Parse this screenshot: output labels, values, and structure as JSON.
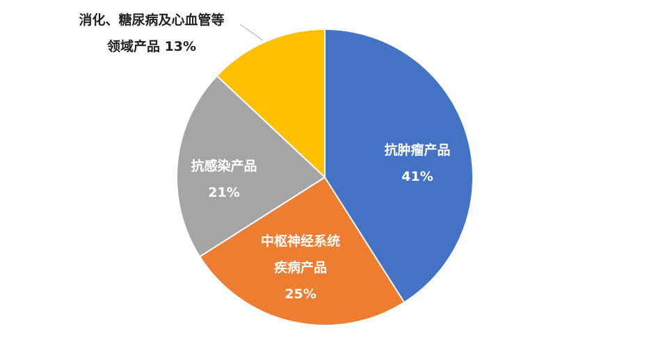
{
  "chart_data": {
    "type": "pie",
    "categories": [
      "抗肿瘤产品",
      "中枢神经系统疾病产品",
      "抗感染产品",
      "消化、糖尿病及心血管等领域产品"
    ],
    "values": [
      41,
      25,
      21,
      13
    ],
    "value_labels": [
      "41%",
      "25%",
      "21%",
      "13%"
    ],
    "colors": [
      "#4472c4",
      "#ed7d31",
      "#a5a5a5",
      "#ffc000"
    ]
  }
}
